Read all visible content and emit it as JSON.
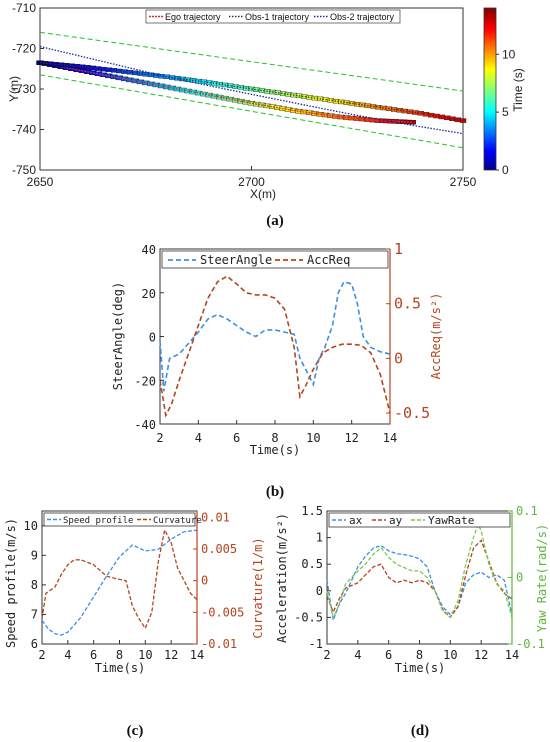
{
  "captions": {
    "a": "(a)",
    "b": "(b)",
    "c": "(c)",
    "d": "(d)"
  },
  "chart_data": [
    {
      "id": "a",
      "type": "scatter",
      "xlabel": "X(m)",
      "ylabel": "Y(m)",
      "xlim": [
        2650,
        2750
      ],
      "ylim": [
        -750,
        -710
      ],
      "xticks": [
        "2650",
        "2700",
        "2750"
      ],
      "yticks": [
        "-710",
        "-720",
        "-730",
        "-740",
        "-750"
      ],
      "legend": [
        "Ego trajectory",
        "Obs-1 trajectory",
        "Obs-2 trajectory"
      ],
      "legend_position": "top",
      "colorbar": {
        "label": "Time (s)",
        "ticks": [
          "0",
          "5",
          "10"
        ],
        "range": [
          0,
          14
        ]
      },
      "grid": false,
      "series": [
        {
          "name": "Ego trajectory",
          "x": [
            2650,
            2660,
            2670,
            2680,
            2690,
            2700,
            2710,
            2720,
            2730,
            2738
          ],
          "y": [
            -723.5,
            -725.5,
            -727.5,
            -729.5,
            -731.5,
            -733.5,
            -735.3,
            -736.8,
            -737.8,
            -738.2
          ],
          "t": [
            0,
            1.5,
            3,
            4.5,
            6,
            7.5,
            9,
            10.5,
            12,
            13.5
          ]
        },
        {
          "name": "Obs-1 trajectory",
          "x": [
            2650,
            2660,
            2670,
            2680,
            2690,
            2700,
            2710,
            2720,
            2730,
            2740,
            2750
          ],
          "y": [
            -723.5,
            -724.5,
            -725.7,
            -727,
            -728.4,
            -730,
            -731.5,
            -733,
            -734.5,
            -736,
            -737.8
          ],
          "t": [
            0,
            1.3,
            2.6,
            3.9,
            5.2,
            6.5,
            7.8,
            9.1,
            10.4,
            11.7,
            13
          ]
        },
        {
          "name": "Obs-2 trajectory",
          "x": [
            2650,
            2660,
            2670,
            2680,
            2690,
            2700,
            2710,
            2720,
            2730,
            2740,
            2750
          ],
          "y": [
            -719.5,
            -722,
            -724.5,
            -727,
            -729.2,
            -731.3,
            -733.4,
            -735.5,
            -737.5,
            -739.3,
            -741
          ],
          "t": [
            0,
            1.3,
            2.6,
            3.9,
            5.2,
            6.5,
            7.8,
            9.1,
            10.4,
            11.7,
            13
          ]
        }
      ]
    },
    {
      "id": "b",
      "type": "line",
      "xlabel": "Time(s)",
      "ylabel": "SteerAngle(deg)",
      "ylabel_right": "AccReq(m/s²)",
      "xlim": [
        2,
        14
      ],
      "ylim": [
        -40,
        40
      ],
      "ylim_right": [
        -0.6,
        1.0
      ],
      "xticks": [
        "2",
        "4",
        "6",
        "8",
        "10",
        "12",
        "14"
      ],
      "yticks": [
        "40",
        "20",
        "0",
        "-20",
        "-40"
      ],
      "yticks_right": [
        "1",
        "0.5",
        "0",
        "-0.5"
      ],
      "legend": [
        "SteerAngle",
        "AccReq"
      ],
      "series": [
        {
          "name": "SteerAngle",
          "axis": "left",
          "color": "#3a8ee6",
          "x": [
            2,
            2.2,
            2.5,
            3,
            3.5,
            4,
            4.5,
            5,
            5.5,
            6,
            6.5,
            7,
            7.5,
            8,
            8.5,
            9,
            9.3,
            9.6,
            10,
            10.3,
            10.6,
            11,
            11.3,
            11.6,
            12,
            12.3,
            12.6,
            13,
            13.5,
            14
          ],
          "y": [
            -2,
            -25,
            -10,
            -8,
            -3,
            2,
            8,
            10,
            8,
            5,
            2,
            0,
            3,
            3,
            2,
            1,
            -10,
            -15,
            -22,
            -10,
            -5,
            5,
            20,
            25,
            24,
            15,
            0,
            -5,
            -7,
            -8
          ]
        },
        {
          "name": "AccReq",
          "axis": "right",
          "color": "#b5441e",
          "x": [
            2,
            2.3,
            2.6,
            3,
            3.5,
            4,
            4.5,
            5,
            5.5,
            6,
            6.5,
            7,
            7.5,
            8,
            8.5,
            9,
            9.3,
            9.6,
            10,
            10.5,
            11,
            11.5,
            12,
            12.5,
            13,
            13.5,
            14
          ],
          "y": [
            -0.2,
            -0.52,
            -0.42,
            -0.2,
            0.05,
            0.3,
            0.55,
            0.7,
            0.75,
            0.68,
            0.6,
            0.58,
            0.58,
            0.55,
            0.45,
            0.1,
            -0.35,
            -0.25,
            -0.1,
            0.05,
            0.1,
            0.13,
            0.13,
            0.12,
            0.05,
            -0.15,
            -0.5
          ]
        }
      ]
    },
    {
      "id": "c",
      "type": "line",
      "xlabel": "Time(s)",
      "ylabel": "Speed profile(m/s)",
      "ylabel_right": "Curvature(1/m)",
      "xlim": [
        2,
        14
      ],
      "ylim": [
        6,
        10.5
      ],
      "ylim_right": [
        -0.01,
        0.011
      ],
      "xticks": [
        "2",
        "4",
        "6",
        "8",
        "10",
        "12",
        "14"
      ],
      "yticks": [
        "10",
        "9",
        "8",
        "7",
        "6"
      ],
      "yticks_right": [
        "0.01",
        "0.005",
        "0",
        "-0.005",
        "-0.01"
      ],
      "legend": [
        "Speed profile",
        "Curvature"
      ],
      "series": [
        {
          "name": "Speed profile",
          "axis": "left",
          "color": "#3a8ee6",
          "x": [
            2,
            2.5,
            3,
            3.5,
            4,
            5,
            6,
            7,
            8,
            9,
            10,
            11,
            12,
            13,
            14
          ],
          "y": [
            6.8,
            6.5,
            6.35,
            6.3,
            6.4,
            6.9,
            7.6,
            8.3,
            8.95,
            9.35,
            9.15,
            9.2,
            9.55,
            9.8,
            9.85
          ]
        },
        {
          "name": "Curvature",
          "axis": "right",
          "color": "#b5441e",
          "x": [
            2,
            2.3,
            3,
            3.5,
            4,
            4.5,
            5,
            6,
            7,
            8,
            8.5,
            9,
            9.5,
            10,
            10.5,
            11,
            11.5,
            12,
            12.5,
            13,
            13.5,
            14
          ],
          "y": [
            -0.006,
            -0.002,
            -0.001,
            0.001,
            0.0025,
            0.0033,
            0.0033,
            0.0025,
            0.0007,
            0.0002,
            0,
            -0.004,
            -0.006,
            -0.0075,
            -0.005,
            0.003,
            0.008,
            0.006,
            0.002,
            0,
            -0.002,
            -0.003
          ]
        }
      ]
    },
    {
      "id": "d",
      "type": "line",
      "xlabel": "Time(s)",
      "ylabel": "Acceleration(m/s²)",
      "ylabel_right": "Yaw Rate(rad/s)",
      "xlim": [
        2,
        14
      ],
      "ylim": [
        -1,
        1.5
      ],
      "ylim_right": [
        -0.1,
        0.1
      ],
      "xticks": [
        "2",
        "4",
        "6",
        "8",
        "10",
        "12",
        "14"
      ],
      "yticks": [
        "1.5",
        "1",
        "0.5",
        "0",
        "-0.5",
        "-1"
      ],
      "yticks_right": [
        "0.1",
        "0",
        "-0.1"
      ],
      "legend": [
        "ax",
        "ay",
        "YawRate"
      ],
      "series": [
        {
          "name": "ax",
          "axis": "left",
          "color": "#3a8ee6",
          "x": [
            2,
            2.4,
            2.8,
            3.2,
            3.6,
            4,
            4.5,
            5,
            5.5,
            6,
            6.5,
            7,
            7.5,
            8,
            8.5,
            9,
            9.5,
            10,
            10.5,
            11,
            11.5,
            12,
            12.5,
            13,
            13.5,
            14
          ],
          "y": [
            0.2,
            -0.55,
            -0.25,
            -0.05,
            0.2,
            0.45,
            0.65,
            0.8,
            0.85,
            0.75,
            0.7,
            0.68,
            0.65,
            0.6,
            0.45,
            0.0,
            -0.3,
            -0.45,
            -0.3,
            0.15,
            0.3,
            0.35,
            0.25,
            0.3,
            0.2,
            -0.45
          ]
        },
        {
          "name": "ay",
          "axis": "left",
          "color": "#b5441e",
          "x": [
            2,
            2.4,
            2.8,
            3.2,
            3.6,
            4,
            4.5,
            5,
            5.5,
            6,
            6.5,
            7,
            7.5,
            8,
            8.5,
            9,
            9.5,
            10,
            10.5,
            11,
            11.5,
            12,
            12.5,
            13,
            13.5,
            14
          ],
          "y": [
            -0.1,
            -0.4,
            -0.15,
            0.05,
            0.1,
            0.15,
            0.3,
            0.45,
            0.5,
            0.25,
            0.15,
            0.2,
            0.15,
            0.2,
            0.15,
            0.0,
            -0.35,
            -0.5,
            -0.3,
            0.3,
            0.8,
            0.95,
            0.55,
            0.15,
            -0.05,
            -0.15
          ]
        },
        {
          "name": "YawRate",
          "axis": "right",
          "color": "#7ec850",
          "x": [
            2,
            2.4,
            2.8,
            3.2,
            3.6,
            4,
            4.5,
            5,
            5.5,
            6,
            6.5,
            7,
            7.5,
            8,
            8.5,
            9,
            9.5,
            10,
            10.5,
            11,
            11.5,
            11.8,
            12,
            12.5,
            13,
            13.5,
            14
          ],
          "y": [
            -0.02,
            -0.06,
            -0.04,
            -0.01,
            0.0,
            0.01,
            0.02,
            0.035,
            0.045,
            0.03,
            0.02,
            0.015,
            0.01,
            0.01,
            0.0,
            -0.02,
            -0.05,
            -0.06,
            -0.035,
            0.02,
            0.06,
            0.08,
            0.07,
            0.02,
            -0.01,
            -0.02,
            -0.06
          ]
        }
      ]
    }
  ]
}
